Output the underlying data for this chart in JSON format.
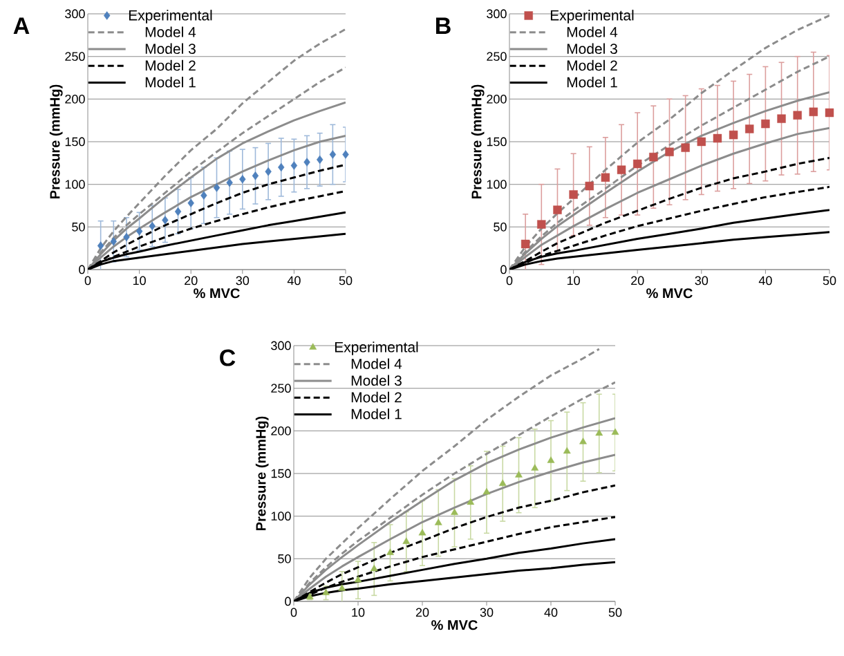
{
  "chart_data": [
    {
      "type": "line",
      "title": "A",
      "xlabel": "% MVC",
      "ylabel": "Pressure (mmHg)",
      "xlim": [
        0,
        50
      ],
      "xticks": [
        0,
        10,
        20,
        30,
        40,
        50
      ],
      "ylim": [
        0,
        300
      ],
      "yticks": [
        0,
        50,
        100,
        150,
        200,
        250,
        300
      ],
      "grid": "y",
      "legend": "top left",
      "series": [
        {
          "name": "Experimental",
          "type": "scatter",
          "marker": "diamond",
          "color": "#4f81bd",
          "x": [
            2.5,
            5,
            7.5,
            10,
            12.5,
            15,
            17.5,
            20,
            22.5,
            25,
            27.5,
            30,
            32.5,
            35,
            37.5,
            40,
            42.5,
            45,
            47.5,
            50
          ],
          "values": [
            28,
            33,
            38,
            45,
            51,
            58,
            68,
            78,
            87,
            96,
            102,
            106,
            110,
            115,
            120,
            122,
            126,
            129,
            135,
            135
          ],
          "errors": [
            29,
            24,
            23,
            22,
            24,
            26,
            26,
            30,
            33,
            35,
            37,
            35,
            33,
            33,
            34,
            31,
            31,
            31,
            35,
            32
          ]
        },
        {
          "name": "Model 4",
          "color": "#8c8c8c",
          "line_style": "dashed",
          "x": [
            0,
            2.5,
            5,
            7.5,
            10,
            15,
            20,
            25,
            30,
            35,
            40,
            45,
            50
          ],
          "values": [
            0,
            25,
            45,
            62,
            78,
            110,
            140,
            165,
            195,
            220,
            245,
            265,
            282
          ]
        },
        {
          "color": "#8c8c8c",
          "line_style": "dashed",
          "x": [
            0,
            2.5,
            5,
            7.5,
            10,
            15,
            20,
            25,
            30,
            35,
            40,
            45,
            50
          ],
          "values": [
            0,
            20,
            37,
            52,
            65,
            90,
            115,
            138,
            160,
            180,
            200,
            220,
            237
          ]
        },
        {
          "name": "Model 3",
          "color": "#8c8c8c",
          "line_style": "solid",
          "x": [
            0,
            2.5,
            5,
            7.5,
            10,
            15,
            20,
            25,
            30,
            35,
            40,
            45,
            50
          ],
          "values": [
            0,
            18,
            34,
            48,
            60,
            85,
            108,
            130,
            148,
            162,
            175,
            186,
            196
          ]
        },
        {
          "color": "#8c8c8c",
          "line_style": "solid",
          "x": [
            0,
            2.5,
            5,
            7.5,
            10,
            15,
            20,
            25,
            30,
            35,
            40,
            45,
            50
          ],
          "values": [
            0,
            14,
            27,
            38,
            48,
            67,
            85,
            100,
            115,
            128,
            140,
            150,
            157
          ]
        },
        {
          "name": "Model 2",
          "color": "#000000",
          "line_style": "dashed",
          "x": [
            0,
            2.5,
            5,
            7.5,
            10,
            15,
            20,
            25,
            30,
            35,
            40,
            45,
            50
          ],
          "values": [
            0,
            10,
            20,
            29,
            37,
            52,
            65,
            78,
            90,
            100,
            108,
            116,
            123
          ]
        },
        {
          "color": "#000000",
          "line_style": "dashed",
          "x": [
            0,
            2.5,
            5,
            7.5,
            10,
            15,
            20,
            25,
            30,
            35,
            40,
            45,
            50
          ],
          "values": [
            0,
            8,
            15,
            21,
            27,
            38,
            48,
            57,
            65,
            73,
            80,
            86,
            92
          ]
        },
        {
          "name": "Model 1",
          "color": "#000000",
          "line_style": "solid",
          "x": [
            0,
            2.5,
            5,
            7.5,
            10,
            15,
            20,
            25,
            30,
            35,
            40,
            45,
            50
          ],
          "values": [
            0,
            9,
            14,
            18,
            21,
            28,
            34,
            40,
            46,
            52,
            57,
            62,
            67
          ]
        },
        {
          "color": "#000000",
          "line_style": "solid",
          "x": [
            0,
            2.5,
            5,
            7.5,
            10,
            15,
            20,
            25,
            30,
            35,
            40,
            45,
            50
          ],
          "values": [
            0,
            6,
            10,
            12,
            14,
            18,
            22,
            26,
            30,
            33,
            36,
            39,
            42
          ]
        }
      ]
    },
    {
      "type": "line",
      "title": "B",
      "xlabel": "% MVC",
      "ylabel": "Pressure (mmHg)",
      "xlim": [
        0,
        50
      ],
      "xticks": [
        0,
        10,
        20,
        30,
        40,
        50
      ],
      "ylim": [
        0,
        300
      ],
      "yticks": [
        0,
        50,
        100,
        150,
        200,
        250,
        300
      ],
      "grid": "y",
      "legend": "top left",
      "series": [
        {
          "name": "Experimental",
          "type": "scatter",
          "marker": "square",
          "color": "#c0504d",
          "x": [
            2.5,
            5,
            7.5,
            10,
            12.5,
            15,
            17.5,
            20,
            22.5,
            25,
            27.5,
            30,
            32.5,
            35,
            37.5,
            40,
            42.5,
            45,
            47.5,
            50
          ],
          "values": [
            30,
            53,
            70,
            88,
            98,
            108,
            117,
            124,
            132,
            138,
            143,
            150,
            154,
            158,
            165,
            171,
            177,
            181,
            185,
            184
          ],
          "errors": [
            35,
            47,
            48,
            48,
            46,
            47,
            53,
            60,
            60,
            62,
            61,
            62,
            62,
            63,
            64,
            67,
            66,
            69,
            70,
            67
          ]
        },
        {
          "name": "Model 4",
          "color": "#8c8c8c",
          "line_style": "dashed",
          "x": [
            0,
            2.5,
            5,
            7.5,
            10,
            15,
            20,
            25,
            30,
            35,
            40,
            45,
            50
          ],
          "values": [
            0,
            27,
            48,
            66,
            83,
            117,
            149,
            176,
            207,
            234,
            260,
            281,
            298
          ]
        },
        {
          "color": "#8c8c8c",
          "line_style": "dashed",
          "x": [
            0,
            2.5,
            5,
            7.5,
            10,
            15,
            20,
            25,
            30,
            35,
            40,
            45,
            50
          ],
          "values": [
            0,
            21,
            39,
            55,
            69,
            95,
            122,
            146,
            169,
            190,
            211,
            232,
            250
          ]
        },
        {
          "name": "Model 3",
          "color": "#8c8c8c",
          "line_style": "solid",
          "x": [
            0,
            2.5,
            5,
            7.5,
            10,
            15,
            20,
            25,
            30,
            35,
            40,
            45,
            50
          ],
          "values": [
            0,
            19,
            36,
            51,
            64,
            90,
            115,
            138,
            157,
            172,
            186,
            198,
            208
          ]
        },
        {
          "color": "#8c8c8c",
          "line_style": "solid",
          "x": [
            0,
            2.5,
            5,
            7.5,
            10,
            15,
            20,
            25,
            30,
            35,
            40,
            45,
            50
          ],
          "values": [
            0,
            15,
            29,
            40,
            51,
            71,
            90,
            106,
            122,
            136,
            148,
            159,
            166
          ]
        },
        {
          "name": "Model 2",
          "color": "#000000",
          "line_style": "dashed",
          "x": [
            0,
            2.5,
            5,
            7.5,
            10,
            15,
            20,
            25,
            30,
            35,
            40,
            45,
            50
          ],
          "values": [
            0,
            10,
            21,
            31,
            39,
            55,
            69,
            83,
            96,
            107,
            115,
            124,
            131
          ]
        },
        {
          "color": "#000000",
          "line_style": "dashed",
          "x": [
            0,
            2.5,
            5,
            7.5,
            10,
            15,
            20,
            25,
            30,
            35,
            40,
            45,
            50
          ],
          "values": [
            0,
            8,
            16,
            22,
            28,
            40,
            51,
            60,
            69,
            77,
            85,
            91,
            97
          ]
        },
        {
          "name": "Model 1",
          "color": "#000000",
          "line_style": "solid",
          "x": [
            0,
            2.5,
            5,
            7.5,
            10,
            15,
            20,
            25,
            30,
            35,
            40,
            45,
            50
          ],
          "values": [
            0,
            9,
            15,
            19,
            22,
            29,
            36,
            42,
            48,
            55,
            60,
            65,
            70
          ]
        },
        {
          "color": "#000000",
          "line_style": "solid",
          "x": [
            0,
            2.5,
            5,
            7.5,
            10,
            15,
            20,
            25,
            30,
            35,
            40,
            45,
            50
          ],
          "values": [
            0,
            6,
            10,
            13,
            15,
            19,
            23,
            27,
            31,
            35,
            38,
            41,
            44
          ]
        }
      ]
    },
    {
      "type": "line",
      "title": "C",
      "xlabel": "% MVC",
      "ylabel": "Pressure (mmHg)",
      "xlim": [
        0,
        50
      ],
      "xticks": [
        0,
        10,
        20,
        30,
        40,
        50
      ],
      "ylim": [
        0,
        300
      ],
      "yticks": [
        0,
        50,
        100,
        150,
        200,
        250,
        300
      ],
      "grid": "y",
      "legend": "top left",
      "series": [
        {
          "name": "Experimental",
          "type": "scatter",
          "marker": "triangle",
          "color": "#9bbb59",
          "x": [
            2.5,
            5,
            7.5,
            10,
            12.5,
            15,
            17.5,
            20,
            22.5,
            25,
            27.5,
            30,
            32.5,
            35,
            37.5,
            40,
            42.5,
            45,
            47.5,
            50
          ],
          "values": [
            5,
            10,
            15,
            25,
            38,
            57,
            70,
            80,
            92,
            104,
            116,
            128,
            138,
            148,
            156,
            165,
            176,
            187,
            197,
            198
          ],
          "errors": [
            3,
            8,
            20,
            22,
            31,
            33,
            35,
            38,
            39,
            40,
            43,
            48,
            44,
            44,
            46,
            47,
            46,
            46,
            46,
            45
          ]
        },
        {
          "name": "Model 4",
          "color": "#8c8c8c",
          "line_style": "dashed",
          "x": [
            0,
            2.5,
            5,
            7.5,
            10,
            15,
            20,
            25,
            30,
            35,
            40,
            45,
            47.5
          ],
          "values": [
            0,
            28,
            50,
            68,
            86,
            120,
            153,
            182,
            213,
            240,
            265,
            285,
            296
          ]
        },
        {
          "color": "#8c8c8c",
          "line_style": "dashed",
          "x": [
            0,
            2.5,
            5,
            7.5,
            10,
            15,
            20,
            25,
            30,
            35,
            40,
            45,
            50
          ],
          "values": [
            0,
            22,
            40,
            56,
            71,
            98,
            125,
            150,
            173,
            195,
            217,
            238,
            257
          ]
        },
        {
          "name": "Model 3",
          "color": "#8c8c8c",
          "line_style": "solid",
          "x": [
            0,
            2.5,
            5,
            7.5,
            10,
            15,
            20,
            25,
            30,
            35,
            40,
            45,
            50
          ],
          "values": [
            0,
            20,
            37,
            52,
            66,
            93,
            118,
            142,
            162,
            178,
            192,
            204,
            215
          ]
        },
        {
          "color": "#8c8c8c",
          "line_style": "solid",
          "x": [
            0,
            2.5,
            5,
            7.5,
            10,
            15,
            20,
            25,
            30,
            35,
            40,
            45,
            50
          ],
          "values": [
            0,
            15,
            29,
            41,
            52,
            73,
            93,
            110,
            126,
            140,
            152,
            163,
            172
          ]
        },
        {
          "name": "Model 2",
          "color": "#000000",
          "line_style": "dashed",
          "x": [
            0,
            2.5,
            5,
            7.5,
            10,
            15,
            20,
            25,
            30,
            35,
            40,
            45,
            50
          ],
          "values": [
            0,
            11,
            22,
            32,
            40,
            57,
            71,
            86,
            99,
            110,
            118,
            128,
            136
          ]
        },
        {
          "color": "#000000",
          "line_style": "dashed",
          "x": [
            0,
            2.5,
            5,
            7.5,
            10,
            15,
            20,
            25,
            30,
            35,
            40,
            45,
            50
          ],
          "values": [
            0,
            8,
            16,
            23,
            29,
            41,
            52,
            61,
            70,
            79,
            87,
            93,
            99
          ]
        },
        {
          "name": "Model 1",
          "color": "#000000",
          "line_style": "solid",
          "x": [
            0,
            2.5,
            5,
            7.5,
            10,
            15,
            20,
            25,
            30,
            35,
            40,
            45,
            50
          ],
          "values": [
            0,
            10,
            16,
            20,
            23,
            30,
            37,
            44,
            50,
            57,
            62,
            68,
            73
          ]
        },
        {
          "color": "#000000",
          "line_style": "solid",
          "x": [
            0,
            2.5,
            5,
            7.5,
            10,
            15,
            20,
            25,
            30,
            35,
            40,
            45,
            50
          ],
          "values": [
            0,
            6,
            10,
            13,
            15,
            20,
            24,
            28,
            32,
            36,
            39,
            43,
            46
          ]
        }
      ]
    }
  ]
}
